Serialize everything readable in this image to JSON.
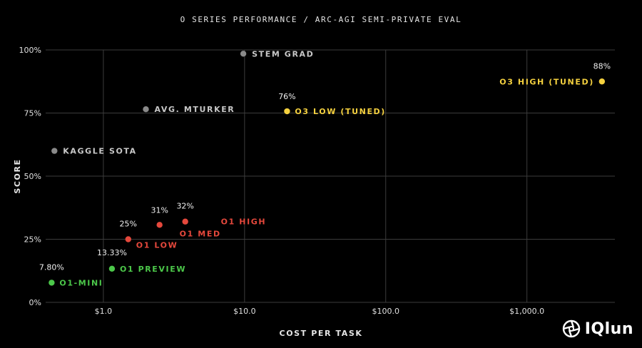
{
  "chart_data": {
    "type": "scatter",
    "title": "O SERIES PERFORMANCE / ARC-AGI SEMI-PRIVATE EVAL",
    "xlabel": "COST PER TASK",
    "ylabel": "SCORE",
    "x_scale": "log",
    "xlim": [
      0.39,
      4200
    ],
    "ylim": [
      0,
      100
    ],
    "x_ticks": [
      {
        "value": 1,
        "label": "$1.0"
      },
      {
        "value": 10,
        "label": "$10.0"
      },
      {
        "value": 100,
        "label": "$100.0"
      },
      {
        "value": 1000,
        "label": "$1,000.0"
      }
    ],
    "y_ticks": [
      {
        "value": 0,
        "label": "0%"
      },
      {
        "value": 25,
        "label": "25%"
      },
      {
        "value": 50,
        "label": "50%"
      },
      {
        "value": 75,
        "label": "75%"
      },
      {
        "value": 100,
        "label": "100%"
      }
    ],
    "grid": true,
    "colors": {
      "gray": "#8a8a8a",
      "gray_text": "#c8c8c8",
      "yellow": "#f5d13f",
      "red": "#e5483c",
      "green": "#4cc84a"
    },
    "points": [
      {
        "name": "STEM GRAD",
        "x": 9.8,
        "y": 98.5,
        "color_key": "gray",
        "value_label": ""
      },
      {
        "name": "AVG. MTURKER",
        "x": 2.0,
        "y": 76.5,
        "color_key": "gray",
        "value_label": ""
      },
      {
        "name": "KAGGLE SOTA",
        "x": 0.45,
        "y": 60,
        "color_key": "gray",
        "value_label": ""
      },
      {
        "name": "O3 LOW (TUNED)",
        "x": 20,
        "y": 75.7,
        "color_key": "yellow",
        "value_label": "76%"
      },
      {
        "name": "O3 HIGH (TUNED)",
        "x": 3400,
        "y": 87.5,
        "color_key": "yellow",
        "value_label": "88%"
      },
      {
        "name": "O1 HIGH",
        "x": 3.8,
        "y": 32,
        "color_key": "red",
        "value_label": "32%"
      },
      {
        "name": "O1 MED",
        "x": 2.5,
        "y": 30.7,
        "color_key": "red",
        "value_label": "31%"
      },
      {
        "name": "O1 LOW",
        "x": 1.5,
        "y": 25,
        "color_key": "red",
        "value_label": "25%"
      },
      {
        "name": "O1 PREVIEW",
        "x": 1.15,
        "y": 13.33,
        "color_key": "green",
        "value_label": "13.33%"
      },
      {
        "name": "O1-MINI",
        "x": 0.43,
        "y": 7.8,
        "color_key": "green",
        "value_label": "7.80%"
      }
    ]
  },
  "watermark": {
    "text": "IQlun",
    "icon": "aperture-logo-icon"
  }
}
